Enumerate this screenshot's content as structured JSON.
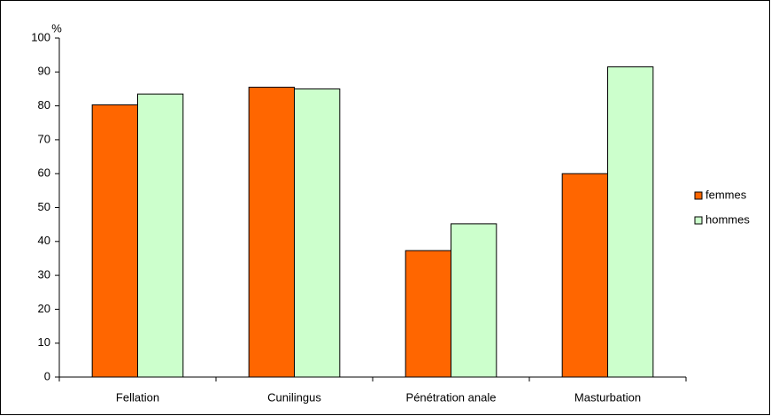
{
  "chart_data": {
    "type": "bar",
    "y_label": "%",
    "categories": [
      "Fellation",
      "Cunilingus",
      "Pénétration anale",
      "Masturbation"
    ],
    "series": [
      {
        "name": "femmes",
        "color": "#ff6600",
        "values": [
          80.3,
          85.5,
          37.3,
          60
        ]
      },
      {
        "name": "hommes",
        "color": "#ccffcc",
        "values": [
          83.5,
          85,
          45.2,
          91.5
        ]
      }
    ],
    "ylim": [
      0,
      100
    ],
    "yticks": [
      0,
      10,
      20,
      30,
      40,
      50,
      60,
      70,
      80,
      90,
      100
    ],
    "grid": false,
    "legend": "right"
  }
}
